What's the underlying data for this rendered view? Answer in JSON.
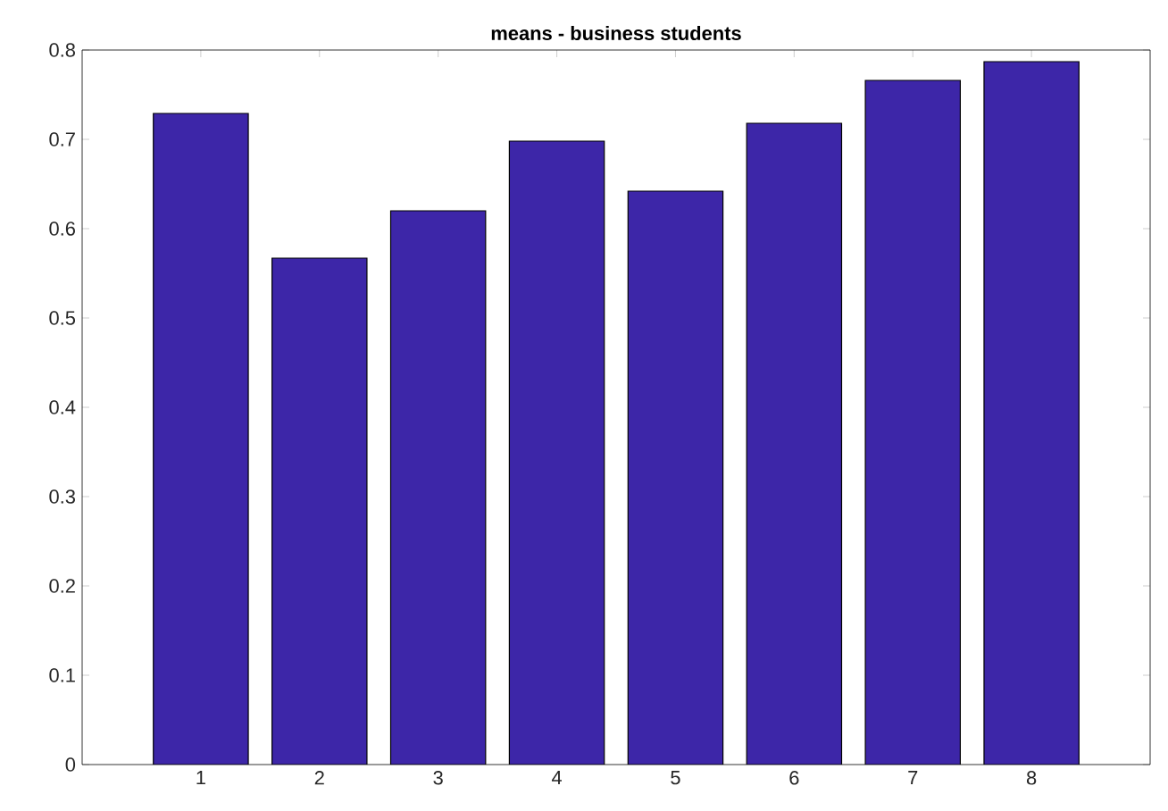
{
  "chart_data": {
    "type": "bar",
    "title": "means - business students",
    "categories": [
      "1",
      "2",
      "3",
      "4",
      "5",
      "6",
      "7",
      "8"
    ],
    "values": [
      0.729,
      0.567,
      0.62,
      0.698,
      0.642,
      0.718,
      0.766,
      0.787
    ],
    "color": "#3d26a8",
    "ylim": [
      0,
      0.8
    ],
    "yticks": [
      0,
      0.1,
      0.2,
      0.3,
      0.4,
      0.5,
      0.6,
      0.7,
      0.8
    ],
    "grid": false
  }
}
